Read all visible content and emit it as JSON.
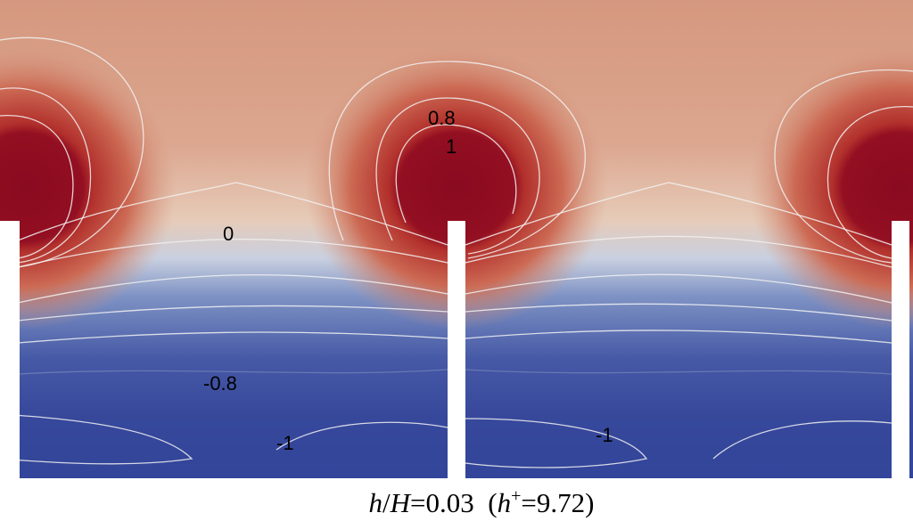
{
  "contour_labels": [
    "0.8",
    "1",
    "0",
    "-0.8",
    "-1",
    "-1"
  ],
  "caption": {
    "parts": [
      "h",
      "/",
      "H",
      "=0.03  (",
      "h",
      "+",
      "=9.72)"
    ]
  }
}
